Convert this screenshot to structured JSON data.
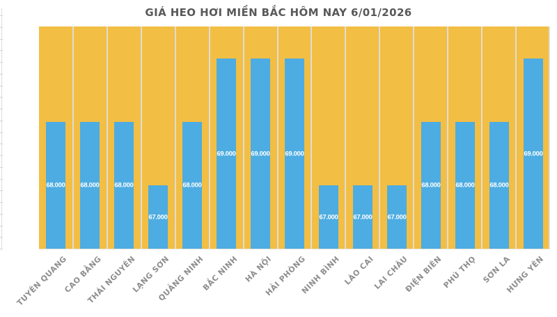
{
  "chart_data": {
    "type": "bar",
    "title": "GIÁ HEO HƠI MIỀN BẮC HÔM NAY 6/01/2026",
    "categories": [
      "TUYÊN QUANG",
      "CAO BẰNG",
      "THÁI NGUYÊN",
      "LẠNG SƠN",
      "QUẢNG NINH",
      "BẮC NINH",
      "HÀ NỘI",
      "HẢI PHÒNG",
      "NINH BÌNH",
      "LÀO CAI",
      "LAI CHÂU",
      "ĐIỆN BIÊN",
      "PHÚ THỌ",
      "SƠN LA",
      "HƯNG YÊN"
    ],
    "values": [
      68000,
      68000,
      68000,
      67000,
      68000,
      69000,
      69000,
      69000,
      67000,
      67000,
      67000,
      68000,
      68000,
      68000,
      69000
    ],
    "value_labels": [
      "68.000",
      "68.000",
      "68.000",
      "67.000",
      "68.000",
      "69.000",
      "69.000",
      "69.000",
      "67.000",
      "67.000",
      "67.000",
      "68.000",
      "68.000",
      "68.000",
      "69.000"
    ],
    "xlabel": "",
    "ylabel": "",
    "ylim": [
      66000,
      69500
    ],
    "legend": "none",
    "grid": "vertical-category-separators",
    "label_position": "inside-center",
    "category_label_rotation_deg": 45,
    "colors": {
      "plot_background": "#F2BE44",
      "bar": "#4DACE2",
      "bar_label": "#FFFFFF",
      "title": "#595959",
      "category_label": "#8E8E8E",
      "gridline": "#DFDDD4",
      "axis_line": "#DCDCDC"
    }
  }
}
